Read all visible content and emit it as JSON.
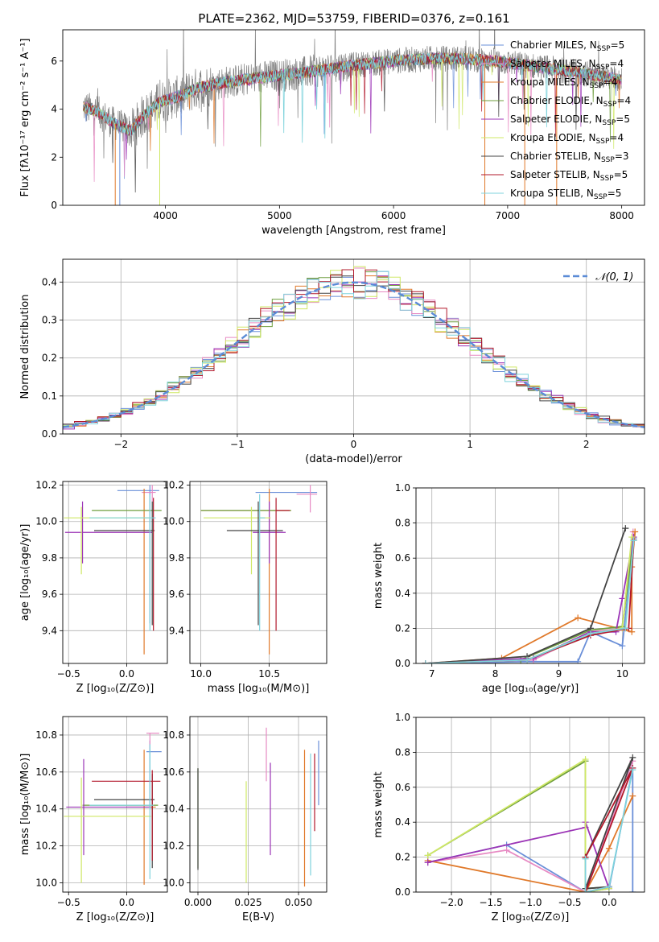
{
  "figure": {
    "title": "PLATE=2362, MJD=53759, FIBERID=0376, z=0.161"
  },
  "models": [
    {
      "name": "Chabrier MILES",
      "nssp": "5",
      "color": "#6a8fd8"
    },
    {
      "name": "Salpeter MILES",
      "nssp": "4",
      "color": "#e78ac3"
    },
    {
      "name": "Kroupa MILES",
      "nssp": "4",
      "color": "#e0792a"
    },
    {
      "name": "Chabrier ELODIE",
      "nssp": "4",
      "color": "#6f9e3e"
    },
    {
      "name": "Salpeter ELODIE",
      "nssp": "5",
      "color": "#9b34b6"
    },
    {
      "name": "Kroupa ELODIE",
      "nssp": "4",
      "color": "#cfe866"
    },
    {
      "name": "Chabrier STELIB",
      "nssp": "3",
      "color": "#444444"
    },
    {
      "name": "Salpeter STELIB",
      "nssp": "5",
      "color": "#b2182b"
    },
    {
      "name": "Kroupa STELIB",
      "nssp": "5",
      "color": "#7fd3dc"
    }
  ],
  "chart_data": [
    {
      "id": "spectrum",
      "type": "line",
      "xlabel": "wavelength [Angstrom, rest frame]",
      "ylabel": "Flux [fλ10⁻¹⁷ erg cm⁻² s⁻¹ A⁻¹]",
      "xlim": [
        3100,
        8200
      ],
      "ylim": [
        0,
        7.3
      ],
      "xticks": [
        4000,
        5000,
        6000,
        7000,
        8000
      ],
      "yticks": [
        0,
        2,
        4,
        6
      ],
      "grid": false,
      "legend": "top-right",
      "data_series": {
        "name": "",
        "color": "#808080"
      },
      "continuum_x": [
        3280,
        3400,
        3550,
        3700,
        3800,
        3950,
        4100,
        4300,
        4500,
        4800,
        5200,
        5600,
        6000,
        6300,
        6600,
        6900,
        7200,
        7500,
        7800,
        8000
      ],
      "continuum_y": [
        4.1,
        3.9,
        3.4,
        3.1,
        3.7,
        4.3,
        4.5,
        4.9,
        5.1,
        5.3,
        5.5,
        5.8,
        6.0,
        6.1,
        6.1,
        6.0,
        5.8,
        5.6,
        5.4,
        5.2
      ]
    },
    {
      "id": "residuals",
      "type": "histogram",
      "xlabel": "(data-model)/error",
      "ylabel": "Normed distribution",
      "xlim": [
        -2.5,
        2.5
      ],
      "ylim": [
        0,
        0.46
      ],
      "xticks": [
        -2,
        -1,
        0,
        1,
        2
      ],
      "yticks": [
        0.0,
        0.1,
        0.2,
        0.3,
        0.4
      ],
      "grid": true,
      "legend": "top-right",
      "reference_curve": {
        "label": "𝒩(0, 1)",
        "mean": 0,
        "sigma": 1,
        "color": "#5b8bd6"
      },
      "bin_width": 0.1
    },
    {
      "id": "age-vs-Z",
      "type": "errorbar",
      "xlabel": "Z [log₁₀(Z/Z⊙)]",
      "ylabel": "age  [log₁₀(age/yr)]",
      "xlim": [
        -0.55,
        0.35
      ],
      "ylim": [
        9.22,
        10.22
      ],
      "xticks": [
        -0.5,
        0.0
      ],
      "yticks": [
        9.4,
        9.6,
        9.8,
        10.0,
        10.2
      ],
      "grid": true,
      "points": [
        {
          "x": 0.2,
          "y": 10.17,
          "xerr": [
            0.28,
            0.08
          ],
          "yerr": [
            0.73,
            0.03
          ]
        },
        {
          "x": 0.22,
          "y": 10.16,
          "xerr": [
            0.09,
            0.03
          ],
          "yerr": [
            0.05,
            0.04
          ]
        },
        {
          "x": 0.15,
          "y": 10.06,
          "xerr": [
            0.0,
            0.0
          ],
          "yerr": [
            0.79,
            0.12
          ]
        },
        {
          "x": 0.0,
          "y": 10.06,
          "xerr": [
            0.3,
            0.3
          ],
          "yerr": [
            0.0,
            0.0
          ]
        },
        {
          "x": -0.38,
          "y": 9.94,
          "xerr": [
            0.15,
            0.6
          ],
          "yerr": [
            0.17,
            0.17
          ]
        },
        {
          "x": -0.39,
          "y": 10.02,
          "xerr": [
            0.15,
            0.6
          ],
          "yerr": [
            0.31,
            0.06
          ]
        },
        {
          "x": 0.22,
          "y": 9.95,
          "xerr": [
            0.5,
            0.02
          ],
          "yerr": [
            0.52,
            0.16
          ]
        },
        {
          "x": 0.23,
          "y": 10.06,
          "xerr": [
            0.0,
            0.0
          ],
          "yerr": [
            0.66,
            0.07
          ]
        },
        {
          "x": 0.2,
          "y": 10.02,
          "xerr": [
            0.52,
            0.05
          ],
          "yerr": [
            0.62,
            0.13
          ]
        }
      ]
    },
    {
      "id": "age-vs-mass",
      "type": "errorbar",
      "xlabel": "mass [log₁₀(M/M⊙)]",
      "ylabel": "",
      "xlim": [
        9.92,
        10.92
      ],
      "ylim": [
        9.22,
        10.22
      ],
      "xticks": [
        10.0,
        10.5
      ],
      "yticks": [
        9.4,
        9.6,
        9.8,
        10.0,
        10.2
      ],
      "grid": true,
      "points": [
        {
          "x": 10.8,
          "y": 10.16,
          "xerr": [
            0.4,
            0.05
          ],
          "yerr": [
            0.0,
            0.0
          ]
        },
        {
          "x": 10.8,
          "y": 10.15,
          "xerr": [
            0.1,
            0.05
          ],
          "yerr": [
            0.1,
            0.05
          ]
        },
        {
          "x": 10.5,
          "y": 10.06,
          "xerr": [
            0.5,
            0.16
          ],
          "yerr": [
            0.79,
            0.12
          ]
        },
        {
          "x": 10.4,
          "y": 10.06,
          "xerr": [
            0.4,
            0.26
          ],
          "yerr": [
            0.0,
            0.0
          ]
        },
        {
          "x": 10.5,
          "y": 9.94,
          "xerr": [
            0.12,
            0.12
          ],
          "yerr": [
            0.17,
            0.17
          ]
        },
        {
          "x": 10.37,
          "y": 10.02,
          "xerr": [
            0.35,
            0.14
          ],
          "yerr": [
            0.31,
            0.06
          ]
        },
        {
          "x": 10.42,
          "y": 9.95,
          "xerr": [
            0.23,
            0.18
          ],
          "yerr": [
            0.52,
            0.16
          ]
        },
        {
          "x": 10.55,
          "y": 10.06,
          "xerr": [
            0.0,
            0.1
          ],
          "yerr": [
            0.66,
            0.07
          ]
        },
        {
          "x": 10.43,
          "y": 10.02,
          "xerr": [
            0.0,
            0.04
          ],
          "yerr": [
            0.62,
            0.13
          ]
        }
      ]
    },
    {
      "id": "mass-weight-vs-age",
      "type": "line",
      "xlabel": "age  [log₁₀(age/yr)]",
      "ylabel": "mass weight",
      "xlim": [
        6.75,
        10.35
      ],
      "ylim": [
        0,
        1.0
      ],
      "xticks": [
        7,
        8,
        9,
        10
      ],
      "yticks": [
        0.0,
        0.2,
        0.4,
        0.6,
        0.8,
        1.0
      ],
      "grid": true,
      "series": [
        {
          "x": [
            6.9,
            8.5,
            9.3,
            9.5,
            10.0,
            10.18
          ],
          "y": [
            0.0,
            0.01,
            0.01,
            0.18,
            0.1,
            0.71
          ]
        },
        {
          "x": [
            6.9,
            8.6,
            9.5,
            10.0,
            10.17
          ],
          "y": [
            0.0,
            0.02,
            0.18,
            0.2,
            0.75
          ]
        },
        {
          "x": [
            6.9,
            8.1,
            9.3,
            10.15,
            10.15,
            10.2
          ],
          "y": [
            0.0,
            0.03,
            0.26,
            0.18,
            0.55,
            0.75
          ]
        },
        {
          "x": [
            6.9,
            8.4,
            9.5,
            10.0,
            10.18
          ],
          "y": [
            0.0,
            0.02,
            0.19,
            0.21,
            0.72
          ]
        },
        {
          "x": [
            6.9,
            8.6,
            9.5,
            9.9,
            10.0,
            10.18
          ],
          "y": [
            0.0,
            0.03,
            0.18,
            0.18,
            0.37,
            0.72
          ]
        },
        {
          "x": [
            6.9,
            8.5,
            9.5,
            10.0,
            10.15
          ],
          "y": [
            0.0,
            0.02,
            0.17,
            0.2,
            0.72
          ]
        },
        {
          "x": [
            6.9,
            8.5,
            9.5,
            10.05
          ],
          "y": [
            0.0,
            0.04,
            0.2,
            0.77
          ]
        },
        {
          "x": [
            6.9,
            8.5,
            9.5,
            10.1,
            10.18
          ],
          "y": [
            0.0,
            0.02,
            0.16,
            0.2,
            0.7
          ]
        },
        {
          "x": [
            6.9,
            8.5,
            9.5,
            10.05,
            10.18
          ],
          "y": [
            0.0,
            0.02,
            0.17,
            0.2,
            0.7
          ]
        }
      ]
    },
    {
      "id": "mass-vs-Z",
      "type": "errorbar",
      "xlabel": "Z [log₁₀(Z/Z⊙)]",
      "ylabel": "mass [log₁₀(M/M⊙)]",
      "xlim": [
        -0.55,
        0.35
      ],
      "ylim": [
        9.95,
        10.9
      ],
      "xticks": [
        -0.5,
        0.0
      ],
      "yticks": [
        10.0,
        10.2,
        10.4,
        10.6,
        10.8
      ],
      "grid": true,
      "points": [
        {
          "x": 0.2,
          "y": 10.71,
          "xerr": [
            0.03,
            0.1
          ],
          "yerr": [
            0.3,
            0.06
          ]
        },
        {
          "x": 0.2,
          "y": 10.81,
          "xerr": [
            0.03,
            0.08
          ],
          "yerr": [
            0.09,
            0.0
          ]
        },
        {
          "x": 0.15,
          "y": 10.41,
          "xerr": [
            0.15,
            0.1
          ],
          "yerr": [
            0.42,
            0.31
          ]
        },
        {
          "x": 0.22,
          "y": 10.42,
          "xerr": [
            0.6,
            0.05
          ],
          "yerr": [
            0.08,
            0.0
          ]
        },
        {
          "x": -0.37,
          "y": 10.41,
          "xerr": [
            0.15,
            0.58
          ],
          "yerr": [
            0.26,
            0.26
          ]
        },
        {
          "x": -0.39,
          "y": 10.36,
          "xerr": [
            0.15,
            0.6
          ],
          "yerr": [
            0.36,
            0.21
          ]
        },
        {
          "x": 0.22,
          "y": 10.45,
          "xerr": [
            0.5,
            0.02
          ],
          "yerr": [
            0.37,
            0.14
          ]
        },
        {
          "x": 0.22,
          "y": 10.55,
          "xerr": [
            0.52,
            0.07
          ],
          "yerr": [
            0.43,
            0.06
          ]
        },
        {
          "x": 0.2,
          "y": 10.42,
          "xerr": [
            0.52,
            0.03
          ],
          "yerr": [
            0.4,
            0.33
          ]
        }
      ]
    },
    {
      "id": "mass-vs-EBV",
      "type": "errorbar",
      "xlabel": "E(B-V)",
      "ylabel": "",
      "xlim": [
        -0.004,
        0.064
      ],
      "ylim": [
        9.95,
        10.9
      ],
      "xticks": [
        0.0,
        0.025,
        0.05
      ],
      "xticklabels": [
        "0.000",
        "0.025",
        "0.050"
      ],
      "yticks": [
        10.0,
        10.2,
        10.4,
        10.6,
        10.8
      ],
      "grid": true,
      "points": [
        {
          "x": 0.06,
          "y": 10.6,
          "xerr": [
            0,
            0
          ],
          "yerr": [
            0.18,
            0.17
          ]
        },
        {
          "x": 0.034,
          "y": 10.68,
          "xerr": [
            0,
            0
          ],
          "yerr": [
            0.13,
            0.16
          ]
        },
        {
          "x": 0.053,
          "y": 10.36,
          "xerr": [
            0,
            0
          ],
          "yerr": [
            0.38,
            0.36
          ]
        },
        {
          "x": 0.0,
          "y": 10.35,
          "xerr": [
            0,
            0
          ],
          "yerr": [
            0.27,
            0.27
          ]
        },
        {
          "x": 0.036,
          "y": 10.4,
          "xerr": [
            0,
            0
          ],
          "yerr": [
            0.25,
            0.25
          ]
        },
        {
          "x": 0.024,
          "y": 10.3,
          "xerr": [
            0,
            0
          ],
          "yerr": [
            0.3,
            0.25
          ]
        },
        {
          "x": 0.0,
          "y": 10.35,
          "xerr": [
            0,
            0
          ],
          "yerr": [
            0.28,
            0.27
          ]
        },
        {
          "x": 0.058,
          "y": 10.6,
          "xerr": [
            0,
            0
          ],
          "yerr": [
            0.32,
            0.1
          ]
        },
        {
          "x": 0.056,
          "y": 10.4,
          "xerr": [
            0,
            0
          ],
          "yerr": [
            0.36,
            0.3
          ]
        }
      ]
    },
    {
      "id": "mass-weight-vs-Z",
      "type": "line",
      "xlabel": "Z [log₁₀(Z/Z⊙)]",
      "ylabel": "mass weight",
      "xlim": [
        -2.45,
        0.45
      ],
      "ylim": [
        0,
        1.0
      ],
      "xticks": [
        -2.0,
        -1.5,
        -1.0,
        -0.5,
        0.0
      ],
      "yticks": [
        0.0,
        0.2,
        0.4,
        0.6,
        0.8,
        1.0
      ],
      "grid": true,
      "series": [
        {
          "x": [
            -2.3,
            -1.3,
            -0.3,
            0.0,
            0.3,
            0.3
          ],
          "y": [
            0.17,
            0.27,
            0.0,
            0.02,
            0.71,
            0.0
          ]
        },
        {
          "x": [
            -2.3,
            -1.3,
            -0.3,
            0.3
          ],
          "y": [
            0.17,
            0.24,
            0.0,
            0.75
          ]
        },
        {
          "x": [
            -2.3,
            -0.3,
            0.0,
            0.3
          ],
          "y": [
            0.18,
            0.0,
            0.25,
            0.55
          ]
        },
        {
          "x": [
            -2.3,
            -0.3,
            -0.3,
            0.0
          ],
          "y": [
            0.21,
            0.75,
            0.02,
            0.03
          ]
        },
        {
          "x": [
            -2.3,
            -0.3,
            -0.3,
            0.0,
            0.0
          ],
          "y": [
            0.17,
            0.37,
            0.4,
            0.02,
            0.03
          ]
        },
        {
          "x": [
            -2.3,
            -0.3,
            -0.3,
            0.0
          ],
          "y": [
            0.21,
            0.76,
            0.0,
            0.02
          ]
        },
        {
          "x": [
            -0.3,
            0.3,
            -0.3,
            0.0
          ],
          "y": [
            0.2,
            0.77,
            0.02,
            0.03
          ]
        },
        {
          "x": [
            -0.3,
            0.3,
            -0.3,
            0.0
          ],
          "y": [
            0.2,
            0.71,
            0.0,
            0.03
          ]
        },
        {
          "x": [
            -0.3,
            -0.3,
            0.0,
            0.3
          ],
          "y": [
            0.19,
            0.0,
            0.03,
            0.7
          ]
        }
      ]
    }
  ]
}
